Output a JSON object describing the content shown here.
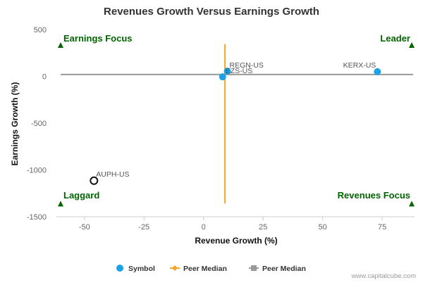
{
  "chart_data": {
    "type": "scatter",
    "title": "Revenues Growth Versus Earnings Growth",
    "xlabel": "Revenue Growth (%)",
    "ylabel": "Earnings Growth (%)",
    "xlim": [
      -60,
      88
    ],
    "ylim": [
      -1500,
      500
    ],
    "x_ticks": [
      -50,
      -25,
      0,
      25,
      50,
      75
    ],
    "y_ticks": [
      500,
      0,
      -500,
      -1000,
      -1500
    ],
    "grid": false,
    "points": [
      {
        "label": "REGN-US",
        "x": 10,
        "y": 55,
        "style": "filled"
      },
      {
        "label": "EZS-US",
        "x": 8,
        "y": -5,
        "style": "filled"
      },
      {
        "label": "KERX-US",
        "x": 73,
        "y": 50,
        "style": "filled"
      },
      {
        "label": "AUPH-US",
        "x": -46,
        "y": -1115,
        "style": "hollow"
      }
    ],
    "peer_median": {
      "x": 9,
      "y": 20
    },
    "quadrants": {
      "top_left": "Earnings Focus",
      "top_right": "Leader",
      "bottom_left": "Laggard",
      "bottom_right": "Revenues Focus"
    },
    "legend": [
      {
        "label": "Symbol",
        "marker": "circle",
        "color": "#1aa3e8"
      },
      {
        "label": "Peer Median",
        "marker": "diamond-line",
        "color": "#f5a623"
      },
      {
        "label": "Peer Median",
        "marker": "square-line",
        "color": "#999999"
      }
    ],
    "legend_position": "bottom-center"
  },
  "colors": {
    "symbol": "#1aa3e8",
    "peer_x_line": "#f5a623",
    "peer_y_line": "#999999",
    "quadrant_text": "#006400",
    "marker_triangle": "#006400"
  },
  "credit": "www.capitalcube.com"
}
